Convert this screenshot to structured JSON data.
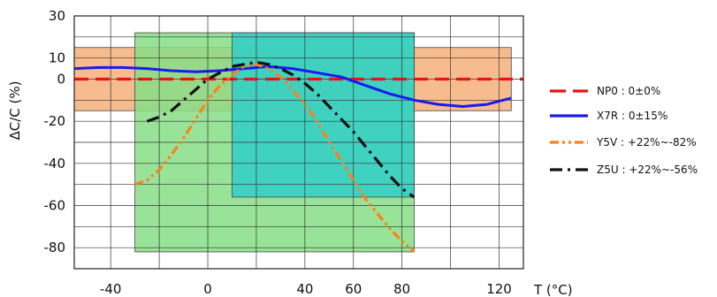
{
  "chart_data": {
    "type": "line",
    "title": "",
    "xlabel": "T (°C)",
    "ylabel": "ΔC/C (%)",
    "xlim": [
      -55,
      130
    ],
    "ylim": [
      -90,
      30
    ],
    "x_ticks": [
      {
        "value": -40,
        "label": "-40"
      },
      {
        "value": 0,
        "label": "0"
      },
      {
        "value": 40,
        "label": "40"
      },
      {
        "value": 60,
        "label": "60"
      },
      {
        "value": 80,
        "label": "80"
      },
      {
        "value": 120,
        "label": "120"
      }
    ],
    "y_ticks": [
      {
        "value": 30,
        "label": "30"
      },
      {
        "value": 10,
        "label": "10"
      },
      {
        "value": 0,
        "label": "0"
      },
      {
        "value": -20,
        "label": "-20"
      },
      {
        "value": -40,
        "label": "-40"
      },
      {
        "value": -60,
        "label": "-60"
      },
      {
        "value": -80,
        "label": "-80"
      }
    ],
    "x_grid": [
      -40,
      -20,
      0,
      20,
      40,
      60,
      80,
      100,
      120
    ],
    "y_grid": [
      20,
      10,
      0,
      -10,
      -20,
      -30,
      -40,
      -50,
      -60,
      -70,
      -80
    ],
    "grid": true,
    "legend_position": "right",
    "bands": [
      {
        "x": [
          -55,
          125
        ],
        "y": [
          -15,
          15
        ],
        "color": "#f6b07a"
      },
      {
        "x": [
          -30,
          85
        ],
        "y": [
          -82,
          22
        ],
        "color": "#86de86"
      },
      {
        "x": [
          10,
          85
        ],
        "y": [
          -56,
          22
        ],
        "color": "#2fcfc8"
      }
    ],
    "series": [
      {
        "name": "NP0 : 0±0%",
        "color": "#ee1111",
        "dash": "dash",
        "x": [
          -55,
          130
        ],
        "y": [
          0,
          0
        ]
      },
      {
        "name": "X7R : 0±15%",
        "color": "#1a1aee",
        "dash": "solid",
        "x": [
          -55,
          -45,
          -35,
          -25,
          -15,
          -5,
          5,
          15,
          25,
          35,
          45,
          55,
          65,
          75,
          85,
          95,
          105,
          115,
          125
        ],
        "y": [
          5,
          5.5,
          5.5,
          5,
          4,
          3.5,
          4,
          5,
          6,
          5,
          3,
          1,
          -3,
          -7,
          -10,
          -12,
          -13,
          -12,
          -9
        ]
      },
      {
        "name": "Y5V : +22%~-82%",
        "color": "#ff7f1a",
        "dash": "dash-dot-dot",
        "x": [
          -30,
          -25,
          -20,
          -15,
          -10,
          -5,
          0,
          5,
          10,
          15,
          20,
          25,
          30,
          35,
          40,
          45,
          50,
          55,
          60,
          65,
          70,
          75,
          80,
          85
        ],
        "y": [
          -50,
          -48,
          -43,
          -36,
          -28,
          -19,
          -10,
          -3,
          2,
          6,
          7,
          5,
          1,
          -5,
          -12,
          -20,
          -30,
          -39,
          -48,
          -57,
          -64,
          -71,
          -77,
          -82
        ]
      },
      {
        "name": "Z5U : +22%~-56%",
        "color": "#111111",
        "dash": "dash-dot",
        "x": [
          -25,
          -20,
          -15,
          -10,
          -5,
          0,
          5,
          10,
          15,
          20,
          25,
          30,
          35,
          40,
          45,
          50,
          55,
          60,
          65,
          70,
          75,
          80,
          85
        ],
        "y": [
          -20,
          -18,
          -15,
          -10,
          -5,
          0,
          3,
          6,
          7,
          8,
          7,
          5,
          2,
          -2,
          -7,
          -13,
          -19,
          -25,
          -32,
          -39,
          -46,
          -52,
          -56
        ]
      }
    ]
  }
}
